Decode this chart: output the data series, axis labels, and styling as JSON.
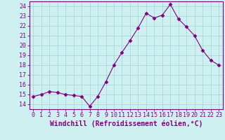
{
  "x": [
    0,
    1,
    2,
    3,
    4,
    5,
    6,
    7,
    8,
    9,
    10,
    11,
    12,
    13,
    14,
    15,
    16,
    17,
    18,
    19,
    20,
    21,
    22,
    23
  ],
  "y": [
    14.8,
    15.0,
    15.3,
    15.2,
    15.0,
    14.9,
    14.8,
    13.8,
    14.8,
    16.3,
    18.0,
    19.3,
    20.5,
    21.8,
    23.3,
    22.8,
    23.1,
    24.2,
    22.7,
    21.9,
    21.0,
    19.5,
    18.5,
    18.0
  ],
  "line_color": "#800080",
  "marker": "D",
  "marker_size": 2.5,
  "bg_color": "#cff0f0",
  "grid_color": "#a8d8d8",
  "tick_color": "#800080",
  "label_color": "#800080",
  "xlabel": "Windchill (Refroidissement éolien,°C)",
  "tick_fontsize": 6,
  "xlabel_fontsize": 7,
  "ylabel_ticks": [
    14,
    15,
    16,
    17,
    18,
    19,
    20,
    21,
    22,
    23,
    24
  ],
  "xlim": [
    -0.5,
    23.5
  ],
  "ylim": [
    13.5,
    24.5
  ]
}
